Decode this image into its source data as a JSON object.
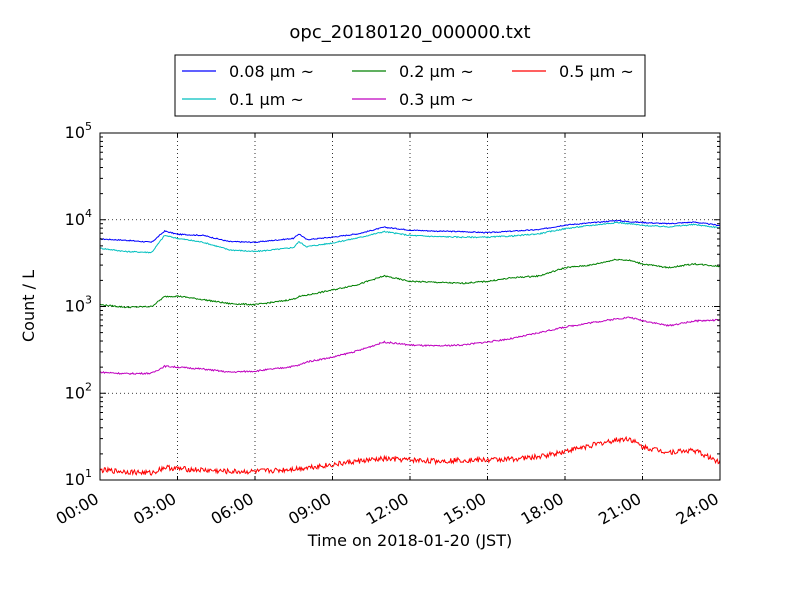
{
  "chart_data": {
    "type": "line",
    "title": "opc_20180120_000000.txt",
    "xlabel": "Time on 2018-01-20 (JST)",
    "ylabel": "Count / L",
    "yscale": "log",
    "ylim": [
      10,
      100000
    ],
    "xlim": [
      "00:00",
      "24:00"
    ],
    "grid": true,
    "legend_position": "top-center",
    "x_ticks": [
      "00:00",
      "03:00",
      "06:00",
      "09:00",
      "12:00",
      "15:00",
      "18:00",
      "21:00",
      "24:00"
    ],
    "y_ticks": [
      {
        "base": "10",
        "exp": "1"
      },
      {
        "base": "10",
        "exp": "2"
      },
      {
        "base": "10",
        "exp": "3"
      },
      {
        "base": "10",
        "exp": "4"
      },
      {
        "base": "10",
        "exp": "5"
      }
    ],
    "x_hours": [
      0,
      1,
      2,
      2.5,
      3,
      4,
      5,
      6,
      7,
      7.5,
      7.7,
      8,
      9,
      10,
      11,
      12,
      13,
      14,
      15,
      16,
      17,
      18,
      19,
      20,
      20.5,
      21,
      22,
      23,
      24
    ],
    "series": [
      {
        "name": "0.08 μm ~",
        "color": "#0000ff",
        "values": [
          6000,
          5800,
          5500,
          7400,
          6800,
          6600,
          5600,
          5500,
          5900,
          6100,
          6900,
          5900,
          6300,
          6900,
          8200,
          7600,
          7400,
          7300,
          7100,
          7400,
          7700,
          8700,
          9200,
          9800,
          9500,
          9300,
          9000,
          9400,
          8600
        ]
      },
      {
        "name": "0.1 μm ~",
        "color": "#00bfbf",
        "values": [
          4700,
          4300,
          4200,
          6600,
          6100,
          5500,
          4500,
          4300,
          4600,
          4800,
          5600,
          4900,
          5400,
          6200,
          7300,
          6600,
          6400,
          6300,
          6300,
          6500,
          6900,
          7900,
          8600,
          9300,
          9000,
          8600,
          8300,
          8800,
          8100
        ]
      },
      {
        "name": "0.2 μm ~",
        "color": "#008000",
        "values": [
          1050,
          980,
          1000,
          1300,
          1320,
          1200,
          1080,
          1050,
          1150,
          1220,
          1300,
          1350,
          1550,
          1800,
          2250,
          1950,
          1900,
          1850,
          1950,
          2150,
          2250,
          2800,
          3000,
          3500,
          3400,
          3100,
          2800,
          3100,
          2900
        ]
      },
      {
        "name": "0.3 μm ~",
        "color": "#bf00bf",
        "values": [
          175,
          168,
          170,
          205,
          200,
          190,
          175,
          180,
          195,
          205,
          210,
          230,
          260,
          310,
          390,
          360,
          350,
          360,
          390,
          430,
          500,
          580,
          650,
          720,
          750,
          690,
          600,
          680,
          700
        ]
      },
      {
        "name": "0.5 μm ~",
        "color": "#ff0000",
        "values": [
          13,
          12.5,
          12,
          14,
          13.5,
          13,
          12.5,
          12.5,
          13,
          13.5,
          13.5,
          14,
          15,
          16.5,
          17.5,
          17,
          16.5,
          17,
          17,
          17.5,
          18.5,
          21.5,
          25,
          29,
          30,
          24,
          21,
          22,
          16
        ]
      }
    ]
  }
}
